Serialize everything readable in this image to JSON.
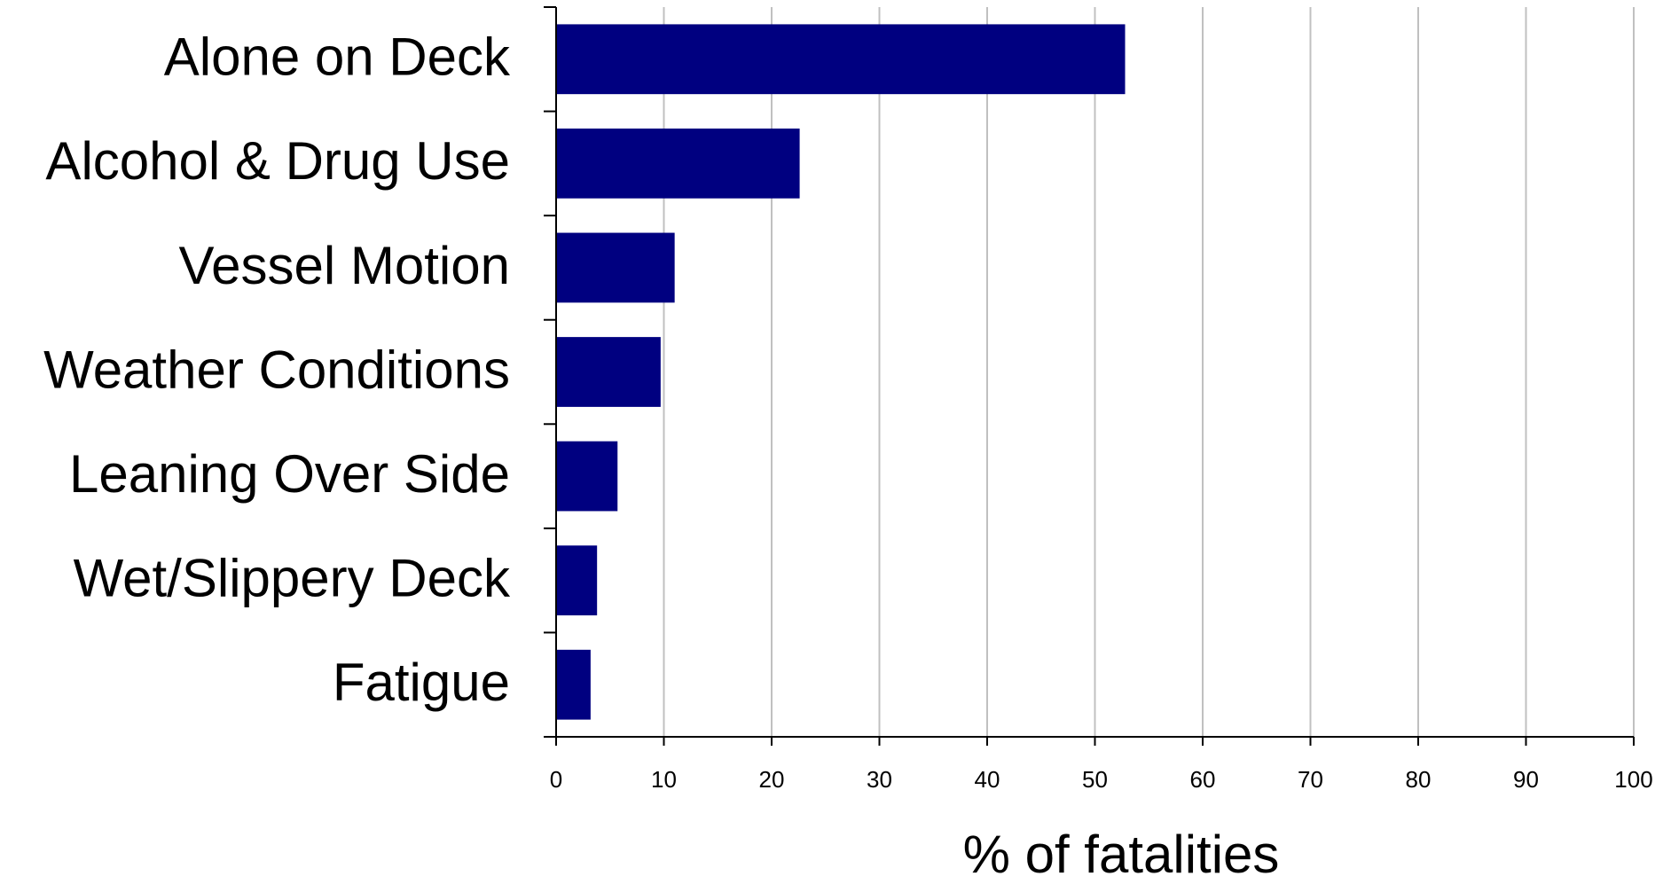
{
  "chart_data": {
    "type": "bar",
    "orientation": "horizontal",
    "categories": [
      "Alone on Deck",
      "Alcohol & Drug Use",
      "Vessel Motion",
      "Weather Conditions",
      "Leaning Over Side",
      "Wet/Slippery Deck",
      "Fatigue"
    ],
    "values": [
      52.8,
      22.6,
      11,
      9.7,
      5.7,
      3.8,
      3.2
    ],
    "color": "#000080",
    "xlabel": "% of fatalities",
    "xlim": [
      0,
      100
    ],
    "xticks": [
      0,
      10,
      20,
      30,
      40,
      50,
      60,
      70,
      80,
      90,
      100
    ],
    "grid": true
  }
}
